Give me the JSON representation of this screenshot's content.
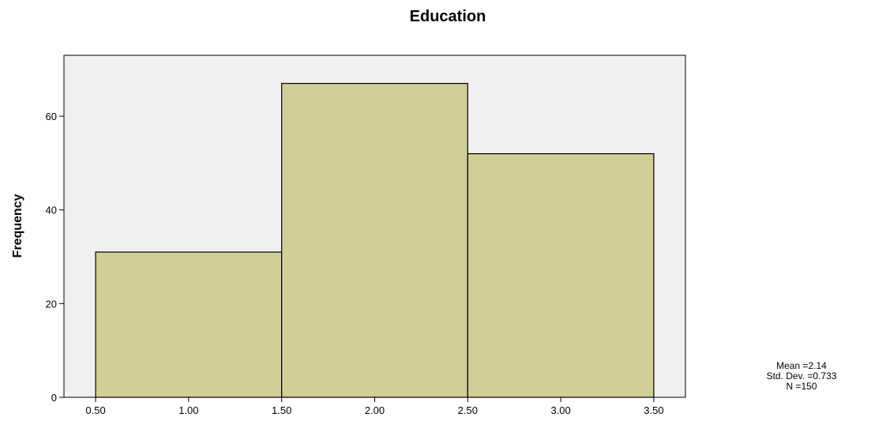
{
  "chart_data": {
    "type": "bar",
    "title": "Education",
    "xlabel": "",
    "ylabel": "Frequency",
    "bins": [
      {
        "start": 0.5,
        "end": 1.5,
        "value": 31
      },
      {
        "start": 1.5,
        "end": 2.5,
        "value": 67
      },
      {
        "start": 2.5,
        "end": 3.5,
        "value": 52
      }
    ],
    "xlim": [
      0.33,
      3.67
    ],
    "ylim": [
      0,
      73
    ],
    "x_ticks": [
      0.5,
      1.0,
      1.5,
      2.0,
      2.5,
      3.0,
      3.5
    ],
    "x_tick_labels": [
      "0.50",
      "1.00",
      "1.50",
      "2.00",
      "2.50",
      "3.00",
      "3.50"
    ],
    "y_ticks": [
      0,
      20,
      40,
      60
    ],
    "y_tick_labels": [
      "0",
      "20",
      "40",
      "60"
    ],
    "grid": false,
    "stats": {
      "mean": "Mean =2.14",
      "std_dev": "Std. Dev. =0.733",
      "n": "N =150"
    }
  },
  "colors": {
    "bar_fill": "#d3cd98",
    "bar_stroke": "#000000",
    "plot_background": "#f0f0f0",
    "page_background": "#ffffff"
  }
}
